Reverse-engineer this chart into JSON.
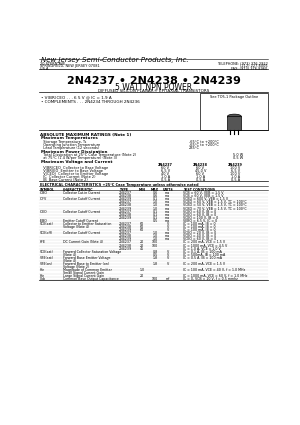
{
  "bg_color": "#ffffff",
  "header_company": "New Jersey Semi-Conductor Products, Inc.",
  "header_address1": "20 STERN AVE.",
  "header_address2": "SPRINGFIELD, NEW JERSEY 07081",
  "header_country": "U.S.A.",
  "header_phone1": "TELEPHONE: (973) 376-2922",
  "header_phone2": "(212) 227-6005",
  "header_fax": "FAX: (973) 376-8960",
  "part_number": "2N4237 • 2N4238 • 2N4239",
  "part_type": "5 WATT NPN POWER",
  "part_desc": "DIFFUSED SILICON PLANAR® EPITAXIAL TRANSISTORS",
  "features": [
    "V(BR)CEO . . . 6 5 V @ IC = 1.9 A",
    "COMPLEMENTS . . . 2N4234 THROUGH 2N4236"
  ],
  "package_note": "See TO5-1 Package Outline",
  "abs_max_title": "ABSOLUTE MAXIMUM RATINGS (Note 1)",
  "max_temp_title": "Maximum Temperatures",
  "max_temp_rows": [
    [
      "  Storage Temperature, Ts",
      "-65°C to +200°C"
    ],
    [
      "  Operating Junction Temperature",
      "-65°C to +200°C"
    ],
    [
      "  Lead Temperature (12 seconds)",
      "235°C"
    ]
  ],
  "max_power_title": "Maximum Power Dissipation",
  "max_power_rows": [
    [
      "  Total Dissipation at 25°C Case Temperature (Note 2)",
      "5.0 W"
    ],
    [
      "  at 75°C (1.4 W/per Temperature) (Note 3)",
      "0.5 W"
    ]
  ],
  "max_volt_title": "Maximum Voltage and Current",
  "mv_headers": [
    "2N4237",
    "2N4238",
    "2N4239"
  ],
  "mv_rows": [
    [
      "  V(BR)CEO  Collector to Base Voltage",
      "60 V",
      "60 V",
      "100 V"
    ],
    [
      "  V(BR)EO  Emitter to Base Voltage",
      "6.5 V",
      "45.0 V",
      "6.5 V"
    ],
    [
      "  V(CEO)  Collector to Emitter Voltage",
      "40 V",
      "60 V",
      "100 V"
    ],
    [
      "  IC  Collector Current (Note 2)",
      "1.0 A",
      "1.0 A",
      "1.0 A"
    ],
    [
      "  IB  Base Current (Note 2)",
      "0.5 A",
      "0.5 A",
      "0.5 A"
    ]
  ],
  "elec_title": "ELECTRICAL CHARACTERISTICS +25°C Case Temperature unless otherwise noted",
  "elec_col_headers": [
    "SYMBOL",
    "CHARACTERISTIC",
    "TYPE",
    "MIN",
    "MAX",
    "UNITS",
    "TEST CONDITIONS"
  ],
  "elec_rows": [
    [
      "ICBO",
      "Collector Cut-in Current",
      "2N4237",
      "",
      "0.6",
      "ma",
      "VCB = 60 V, VEB = 1.5 V"
    ],
    [
      "",
      "",
      "2N4238",
      "",
      "0.6",
      "ma",
      "VCB = 60 V, VEB = 1.5 V"
    ],
    [
      "ICFV",
      "Collector Cutoff Current",
      "2N4239",
      "",
      "0.1",
      "ma",
      "VCBO = 600 V, VEB = 1.5 V"
    ],
    [
      "",
      "",
      "2N4237",
      "",
      "1.0",
      "ma",
      "VCBO = 60 V, VEB = 1.5 V, TC = 100°C"
    ],
    [
      "",
      "",
      "2N4238",
      "",
      "1.0",
      "ma",
      "VCBO = 50 V, VEB = 1.5 V, TC = 100°C"
    ],
    [
      "",
      "",
      "2N4239",
      "",
      "1.0",
      "ma",
      "VCBO = 70 V, VEB = 1.5 V, TC = 100°C"
    ],
    [
      "ICEO",
      "Collector Cutoff Current",
      "2N4237",
      "",
      "0.1",
      "ma",
      "VCEO = 60 V, IB = 0"
    ],
    [
      "",
      "",
      "2N4238",
      "",
      "0.1",
      "ma",
      "VCEO = 60 V, IB = 0"
    ],
    [
      "",
      "",
      "2N4239",
      "",
      "0.1",
      "ma",
      "VCEO = 100 V, IB = 0"
    ],
    [
      "IEBO",
      "Emitter Cutoff Current",
      "",
      "",
      "0.5",
      "ma",
      "VEBO = 6.5 V, IC = 0"
    ],
    [
      "VCE(sat)",
      "Collector to Emitter Saturation",
      "2N4237",
      "60",
      "",
      "V",
      "IC = 100 mA, IB = 0"
    ],
    [
      "",
      "Voltage (Note 4)",
      "2N4238",
      "60",
      "",
      "V",
      "IC = 100 mA, IB = 0"
    ],
    [
      "",
      "",
      "2N4239",
      "60",
      "",
      "V",
      "IC = 100 mA, IB = 0"
    ],
    [
      "VCE(off)",
      "Collector Cutoff Current",
      "2N4237",
      "",
      "1.0",
      "ma",
      "VCEO = 20 V, IB = 0"
    ],
    [
      "",
      "",
      "2N4238",
      "",
      "1.0",
      "ma",
      "VCEO = 40 V, IB = 0"
    ],
    [
      "",
      "",
      "2N4239",
      "",
      "1.0",
      "ma",
      "VCEO = 60 V, IB = 0"
    ],
    [
      "hFE",
      "DC Current Gain (Note 4)",
      "2N4237",
      "20",
      "100",
      "",
      "IC = 200 mA, VCE = 1.5 V"
    ],
    [
      "",
      "",
      "2N4238",
      "20",
      "100",
      "",
      "IC = 1000 mA, VCE = 4.5 V"
    ],
    [
      "",
      "",
      "2N4239",
      "45",
      "",
      "",
      "IC = 1.0 A, VCE = 1.0 V"
    ],
    [
      "VCE(sat)",
      "Forward Collector Saturation Voltage",
      "",
      "",
      "0.8",
      "V",
      "IC = 0.1 A, IB = 100 mA"
    ],
    [
      "",
      "(Note 4)",
      "",
      "",
      "0.5",
      "V",
      "IC = 500mA, IB = 100 mA"
    ],
    [
      "VBE(sat)",
      "Forward Base Emitter Voltage",
      "",
      "",
      "1.8",
      "V",
      "IC = 0.5 A, IB = 100 mA"
    ],
    [
      "",
      "(Note 4)",
      "",
      "",
      "",
      "",
      ""
    ],
    [
      "VBE(on)",
      "Forward Base to Emitter (on)",
      "",
      "",
      "1.8",
      "V",
      "IC = 200 mA, VCE = 1.5 V"
    ],
    [
      "",
      "Voltage (Note 2)",
      "",
      "",
      "",
      "",
      ""
    ],
    [
      "hfe",
      "Magnitude of Common Emitter",
      "",
      "1.0",
      "",
      "",
      "IC = 100 mA, VCE = 40 V, f = 1.0 MHz"
    ],
    [
      "",
      "Small Signal Current Gain",
      "",
      "",
      "",
      "",
      ""
    ],
    [
      "hfe",
      "Large Signal Current Gain",
      "",
      "20",
      "",
      "",
      "IC = 1000 mA, VCE = 60 V, f = 1.0 MHz"
    ],
    [
      "Cob",
      "Common Base Output Capacitance",
      "",
      "",
      "100",
      "mf",
      "IC = 0, VCB = 10 V, f = 0.5 mmhz"
    ]
  ]
}
